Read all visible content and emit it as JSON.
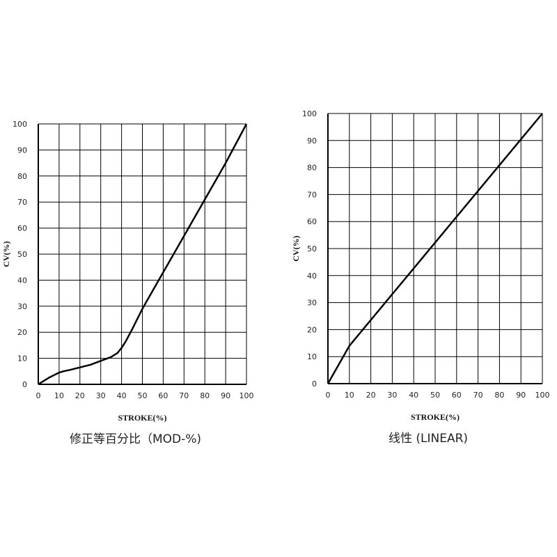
{
  "chart_data": [
    {
      "type": "line",
      "caption": "修正等百分比（MOD-%)",
      "x_label": "STROKE(%)",
      "y_label": "CV(%)",
      "x": [
        0,
        5,
        10,
        12,
        15,
        20,
        25,
        30,
        35,
        38,
        40,
        42,
        45,
        50,
        60,
        70,
        80,
        90,
        100
      ],
      "series": [
        {
          "name": "MOD-%",
          "color": "#000000",
          "values": [
            0,
            2.5,
            4.5,
            5,
            5.5,
            6.5,
            7.5,
            9,
            10.5,
            12,
            14,
            16.5,
            21,
            29,
            43,
            57,
            71,
            85,
            100
          ]
        }
      ],
      "xlim": [
        0,
        100
      ],
      "ylim": [
        0,
        100
      ],
      "xticks": [
        0,
        10,
        20,
        30,
        40,
        50,
        60,
        70,
        80,
        90,
        100
      ],
      "yticks": [
        0,
        10,
        20,
        30,
        40,
        50,
        60,
        70,
        80,
        90,
        100
      ],
      "grid": true
    },
    {
      "type": "line",
      "caption": "线性 (LINEAR)",
      "x_label": "STROKE(%)",
      "y_label": "CV(%)",
      "x": [
        0,
        10,
        100
      ],
      "series": [
        {
          "name": "LINEAR",
          "color": "#000000",
          "values": [
            0,
            14,
            100
          ]
        }
      ],
      "xlim": [
        0,
        100
      ],
      "ylim": [
        0,
        100
      ],
      "xticks": [
        0,
        10,
        20,
        30,
        40,
        50,
        60,
        70,
        80,
        90,
        100
      ],
      "yticks": [
        0,
        10,
        20,
        30,
        40,
        50,
        60,
        70,
        80,
        90,
        100
      ],
      "grid": true
    }
  ]
}
